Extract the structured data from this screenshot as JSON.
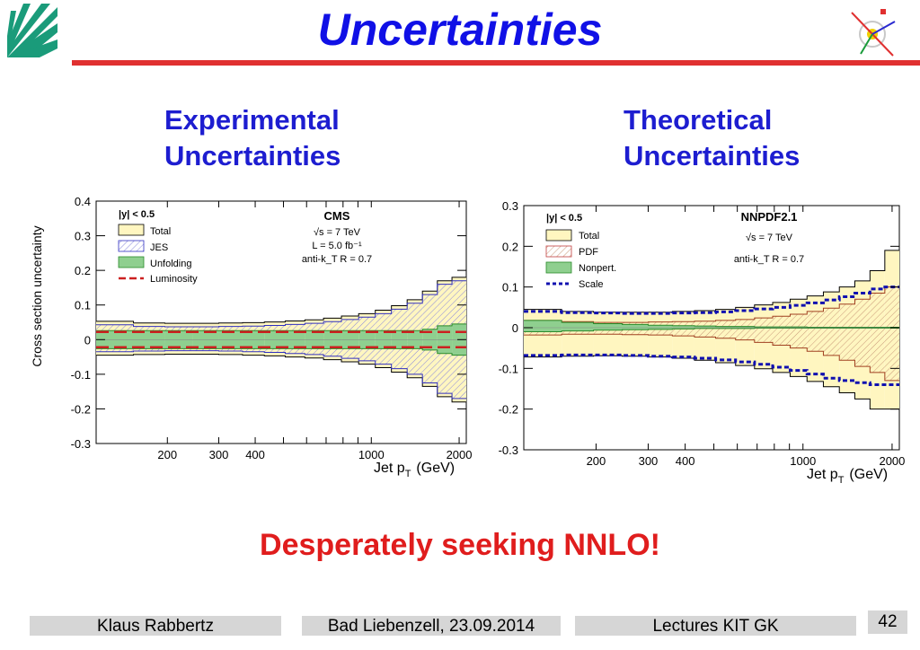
{
  "slide": {
    "title": "Uncertainties",
    "left_heading": [
      "Experimental",
      "Uncertainties"
    ],
    "right_heading": [
      "Theoretical",
      "Uncertainties"
    ],
    "tagline": "Desperately seeking NNLO!",
    "footer": {
      "author": "Klaus Rabbertz",
      "location_date": "Bad Liebenzell, 23.09.2014",
      "event": "Lectures KIT GK",
      "page": "42"
    },
    "colors": {
      "title": "#1010e6",
      "rule": "#e03030",
      "heading": "#1d1dd0",
      "tagline": "#e01d1d",
      "footer_bg": "#d6d6d6"
    }
  },
  "chart_data": [
    {
      "type": "area",
      "ylabel": "Cross section uncertainty",
      "xlabel_main": "Jet p",
      "xlabel_sub": "T",
      "xlabel_unit": "(GeV)",
      "x_scale": "log",
      "xlim": [
        114,
        2116
      ],
      "ylim": [
        -0.3,
        0.4
      ],
      "x_tick_labels": [
        "200",
        "300",
        "400",
        "1000",
        "2000"
      ],
      "x_tick_values": [
        200,
        300,
        400,
        1000,
        2000
      ],
      "y_tick_labels": [
        "0.4",
        "0.3",
        "0.2",
        "0.1",
        "0",
        "-0.1",
        "-0.2",
        "-0.3"
      ],
      "y_tick_values": [
        0.4,
        0.3,
        0.2,
        0.1,
        0,
        -0.1,
        -0.2,
        -0.3
      ],
      "annotations": [
        "|y| < 0.5",
        "CMS",
        "√s = 7 TeV",
        "L = 5.0 fb⁻¹",
        "anti-k_T R = 0.7"
      ],
      "legend": [
        "Total",
        "JES",
        "Unfolding",
        "Luminosity"
      ],
      "legend_position": "top-left",
      "bin_edges": [
        114,
        153,
        196,
        245,
        300,
        362,
        430,
        507,
        592,
        686,
        790,
        905,
        1032,
        1172,
        1327,
        1497,
        1684,
        1890,
        2116
      ],
      "series": [
        {
          "name": "Total",
          "up": [
            0.053,
            0.048,
            0.047,
            0.047,
            0.048,
            0.049,
            0.051,
            0.054,
            0.057,
            0.062,
            0.068,
            0.075,
            0.085,
            0.098,
            0.115,
            0.14,
            0.17,
            0.18
          ],
          "down": [
            -0.045,
            -0.043,
            -0.042,
            -0.042,
            -0.043,
            -0.045,
            -0.047,
            -0.05,
            -0.053,
            -0.058,
            -0.064,
            -0.071,
            -0.081,
            -0.094,
            -0.11,
            -0.135,
            -0.165,
            -0.18
          ]
        },
        {
          "name": "JES",
          "up": [
            0.043,
            0.038,
            0.037,
            0.037,
            0.038,
            0.039,
            0.041,
            0.044,
            0.047,
            0.052,
            0.058,
            0.065,
            0.075,
            0.088,
            0.105,
            0.13,
            0.16,
            0.17
          ],
          "down": [
            -0.035,
            -0.033,
            -0.032,
            -0.032,
            -0.033,
            -0.035,
            -0.037,
            -0.04,
            -0.043,
            -0.048,
            -0.054,
            -0.061,
            -0.071,
            -0.084,
            -0.1,
            -0.125,
            -0.155,
            -0.17
          ]
        },
        {
          "name": "Unfolding",
          "up": [
            0.026,
            0.026,
            0.026,
            0.026,
            0.026,
            0.026,
            0.026,
            0.026,
            0.026,
            0.026,
            0.026,
            0.026,
            0.026,
            0.026,
            0.026,
            0.03,
            0.04,
            0.045
          ],
          "down": [
            -0.026,
            -0.026,
            -0.026,
            -0.026,
            -0.026,
            -0.026,
            -0.026,
            -0.026,
            -0.026,
            -0.026,
            -0.026,
            -0.026,
            -0.026,
            -0.026,
            -0.026,
            -0.03,
            -0.04,
            -0.045
          ]
        },
        {
          "name": "Luminosity",
          "value": 0.022
        }
      ]
    },
    {
      "type": "area",
      "ylabel": "",
      "xlabel_main": "Jet p",
      "xlabel_sub": "T",
      "xlabel_unit": "(GeV)",
      "x_scale": "log",
      "xlim": [
        114,
        2116
      ],
      "ylim": [
        -0.3,
        0.3
      ],
      "x_tick_labels": [
        "200",
        "300",
        "400",
        "1000",
        "2000"
      ],
      "x_tick_values": [
        200,
        300,
        400,
        1000,
        2000
      ],
      "y_tick_labels": [
        "0.3",
        "0.2",
        "0.1",
        "0",
        "-0.1",
        "-0.2",
        "-0.3"
      ],
      "y_tick_values": [
        0.3,
        0.2,
        0.1,
        0,
        -0.1,
        -0.2,
        -0.3
      ],
      "annotations": [
        "|y| < 0.5",
        "NNPDF2.1",
        "√s = 7 TeV",
        "anti-k_T R = 0.7"
      ],
      "legend": [
        "Total",
        "PDF",
        "Nonpert.",
        "Scale"
      ],
      "legend_position": "top-left",
      "bin_edges": [
        114,
        153,
        196,
        245,
        300,
        362,
        430,
        507,
        592,
        686,
        790,
        905,
        1032,
        1172,
        1327,
        1497,
        1684,
        1890,
        2116
      ],
      "series": [
        {
          "name": "Total",
          "up": [
            0.045,
            0.04,
            0.038,
            0.038,
            0.038,
            0.04,
            0.042,
            0.045,
            0.05,
            0.056,
            0.062,
            0.07,
            0.078,
            0.088,
            0.1,
            0.115,
            0.14,
            0.19
          ],
          "down": [
            -0.072,
            -0.07,
            -0.069,
            -0.07,
            -0.072,
            -0.075,
            -0.08,
            -0.086,
            -0.093,
            -0.101,
            -0.11,
            -0.12,
            -0.132,
            -0.145,
            -0.16,
            -0.175,
            -0.2,
            -0.2
          ]
        },
        {
          "name": "PDF",
          "up": [
            0.018,
            0.015,
            0.013,
            0.013,
            0.014,
            0.015,
            0.016,
            0.018,
            0.02,
            0.024,
            0.028,
            0.033,
            0.04,
            0.048,
            0.058,
            0.07,
            0.085,
            0.1
          ],
          "down": [
            -0.018,
            -0.016,
            -0.016,
            -0.017,
            -0.018,
            -0.02,
            -0.023,
            -0.026,
            -0.03,
            -0.036,
            -0.043,
            -0.05,
            -0.058,
            -0.068,
            -0.08,
            -0.095,
            -0.11,
            -0.13
          ]
        },
        {
          "name": "Nonpert.",
          "up": [
            0.018,
            0.013,
            0.01,
            0.008,
            0.006,
            0.005,
            0.004,
            0.003,
            0.003,
            0.002,
            0.002,
            0.002,
            0.001,
            0.001,
            0.001,
            0.001,
            0.001,
            0.001
          ],
          "down": [
            -0.01,
            -0.008,
            -0.006,
            -0.005,
            -0.004,
            -0.003,
            -0.002,
            -0.002,
            -0.002,
            -0.001,
            -0.001,
            -0.001,
            -0.001,
            -0.001,
            -0.001,
            -0.001,
            -0.001,
            -0.001
          ]
        },
        {
          "name": "Scale",
          "up": [
            0.04,
            0.037,
            0.036,
            0.035,
            0.035,
            0.036,
            0.037,
            0.039,
            0.042,
            0.046,
            0.05,
            0.055,
            0.061,
            0.068,
            0.076,
            0.085,
            0.095,
            0.1
          ],
          "down": [
            -0.068,
            -0.067,
            -0.067,
            -0.068,
            -0.07,
            -0.072,
            -0.075,
            -0.079,
            -0.084,
            -0.09,
            -0.097,
            -0.105,
            -0.114,
            -0.124,
            -0.13,
            -0.135,
            -0.14,
            -0.14
          ]
        }
      ]
    }
  ]
}
